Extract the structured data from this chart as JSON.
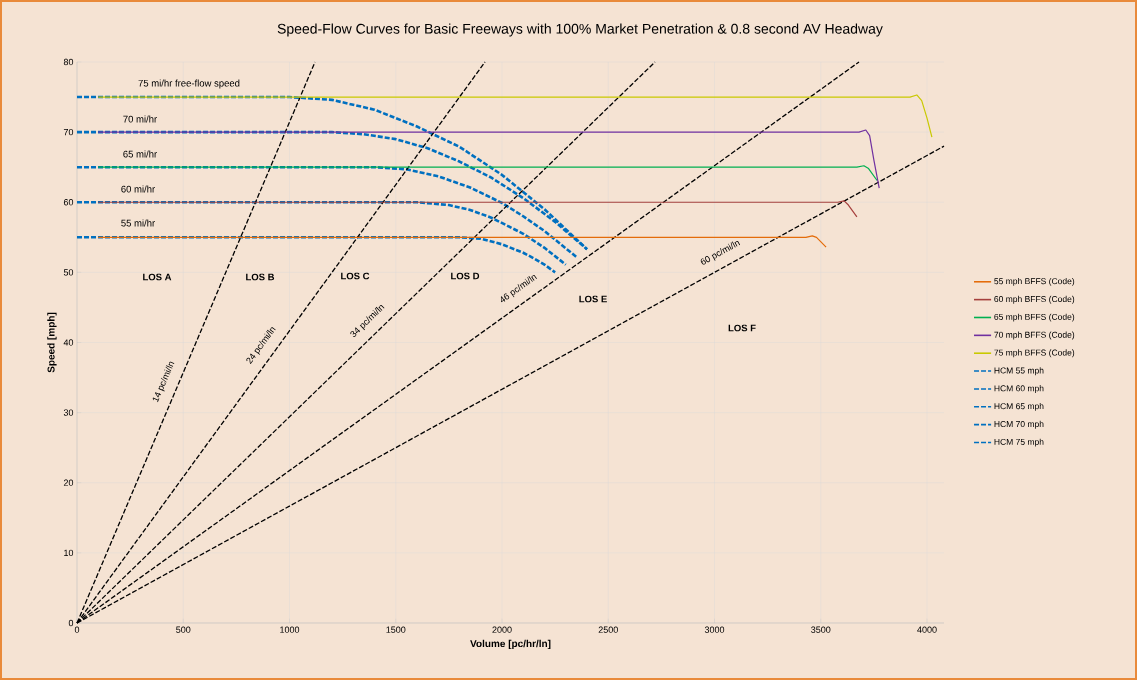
{
  "chart_data": {
    "type": "line",
    "title": "Speed-Flow Curves for Basic Freeways with 100% Market Penetration & 0.8 second AV Headway",
    "xlabel": "Volume [pc/hr/ln]",
    "ylabel": "Speed [mph]",
    "xlim": [
      0,
      4080
    ],
    "ylim": [
      0,
      80
    ],
    "xticks": [
      0,
      500,
      1000,
      1500,
      2000,
      2500,
      3000,
      3500,
      4000
    ],
    "yticks": [
      0,
      10,
      20,
      30,
      40,
      50,
      60,
      70,
      80
    ],
    "grid": true,
    "legend": "right",
    "marker": "none",
    "series": [
      {
        "name": "55 mph BFFS (Code)",
        "color": "#e46c0a",
        "line_style": "solid",
        "x": [
          100,
          3430,
          3460,
          3480,
          3525
        ],
        "values": [
          55,
          55,
          55.2,
          55,
          53.6
        ]
      },
      {
        "name": "60 mph BFFS (Code)",
        "color": "#a5403d",
        "line_style": "solid",
        "x": [
          100,
          3580,
          3610,
          3630,
          3670
        ],
        "values": [
          60,
          60,
          60.2,
          59.6,
          57.9
        ]
      },
      {
        "name": "65 mph BFFS (Code)",
        "color": "#00b050",
        "line_style": "solid",
        "x": [
          100,
          3670,
          3703,
          3725,
          3765
        ],
        "values": [
          65,
          65,
          65.2,
          64.8,
          63.1
        ]
      },
      {
        "name": "70 mph BFFS (Code)",
        "color": "#7030a0",
        "line_style": "solid",
        "x": [
          100,
          3680,
          3712,
          3730,
          3750,
          3775
        ],
        "values": [
          70,
          70,
          70.3,
          69.5,
          66,
          62
        ]
      },
      {
        "name": "75 mph BFFS (Code)",
        "color": "#c9c900",
        "line_style": "solid",
        "x": [
          100,
          3920,
          3952,
          3975,
          4000,
          4023
        ],
        "values": [
          75,
          75,
          75.3,
          74.5,
          72,
          69.3
        ]
      },
      {
        "name": "HCM 55 mph",
        "color": "#0070c0",
        "line_style": "dashed",
        "x": [
          0,
          1800,
          1900,
          2000,
          2100,
          2150,
          2200,
          2250
        ],
        "values": [
          55,
          55,
          54.8,
          54.0,
          52.8,
          52.0,
          51.1,
          50
        ]
      },
      {
        "name": "HCM 60 mph",
        "color": "#0070c0",
        "line_style": "dashed",
        "x": [
          0,
          1600,
          1750,
          1850,
          1950,
          2100,
          2200,
          2300
        ],
        "values": [
          60,
          60,
          59.6,
          58.9,
          57.8,
          55.5,
          53.5,
          51.1
        ]
      },
      {
        "name": "HCM 65 mph",
        "color": "#0070c0",
        "line_style": "dashed",
        "x": [
          0,
          1400,
          1550,
          1700,
          1850,
          2000,
          2100,
          2200,
          2350
        ],
        "values": [
          65,
          65,
          64.7,
          63.7,
          62.1,
          59.9,
          58.0,
          55.9,
          52.2
        ]
      },
      {
        "name": "HCM 70 mph",
        "color": "#0070c0",
        "line_style": "dashed",
        "x": [
          0,
          1200,
          1350,
          1500,
          1650,
          1800,
          1950,
          2100,
          2250,
          2400
        ],
        "values": [
          70,
          70,
          69.7,
          69.0,
          67.7,
          65.8,
          63.5,
          60.6,
          57.2,
          53.3
        ]
      },
      {
        "name": "HCM 75 mph",
        "color": "#0070c0",
        "line_style": "dashed",
        "x": [
          0,
          1000,
          1200,
          1400,
          1600,
          1800,
          2000,
          2200,
          2400
        ],
        "values": [
          75,
          75,
          74.6,
          73.2,
          70.8,
          67.9,
          63.9,
          59.0,
          53.3
        ]
      },
      {
        "name": "14 pc/mi/ln",
        "color": "#000000",
        "line_style": "dashed",
        "x": [
          0,
          1120
        ],
        "values": [
          0,
          80
        ]
      },
      {
        "name": "24 pc/mi/ln",
        "color": "#000000",
        "line_style": "dashed",
        "x": [
          0,
          1920
        ],
        "values": [
          0,
          80
        ]
      },
      {
        "name": "34 pc/mi/ln",
        "color": "#000000",
        "line_style": "dashed",
        "x": [
          0,
          2720
        ],
        "values": [
          0,
          80
        ]
      },
      {
        "name": "46 pc/mi/ln",
        "color": "#000000",
        "line_style": "dashed",
        "x": [
          0,
          3680
        ],
        "values": [
          0,
          80
        ]
      },
      {
        "name": "60 pc/mi/ln",
        "color": "#000000",
        "line_style": "dashed",
        "x": [
          0,
          4080
        ],
        "values": [
          0,
          68.0
        ]
      }
    ],
    "annotations": [
      "75 mi/hr free-flow speed",
      "70 mi/hr",
      "65 mi/hr",
      "60 mi/hr",
      "55 mi/hr",
      "LOS A",
      "LOS B",
      "LOS C",
      "LOS D",
      "LOS E",
      "LOS F"
    ]
  }
}
